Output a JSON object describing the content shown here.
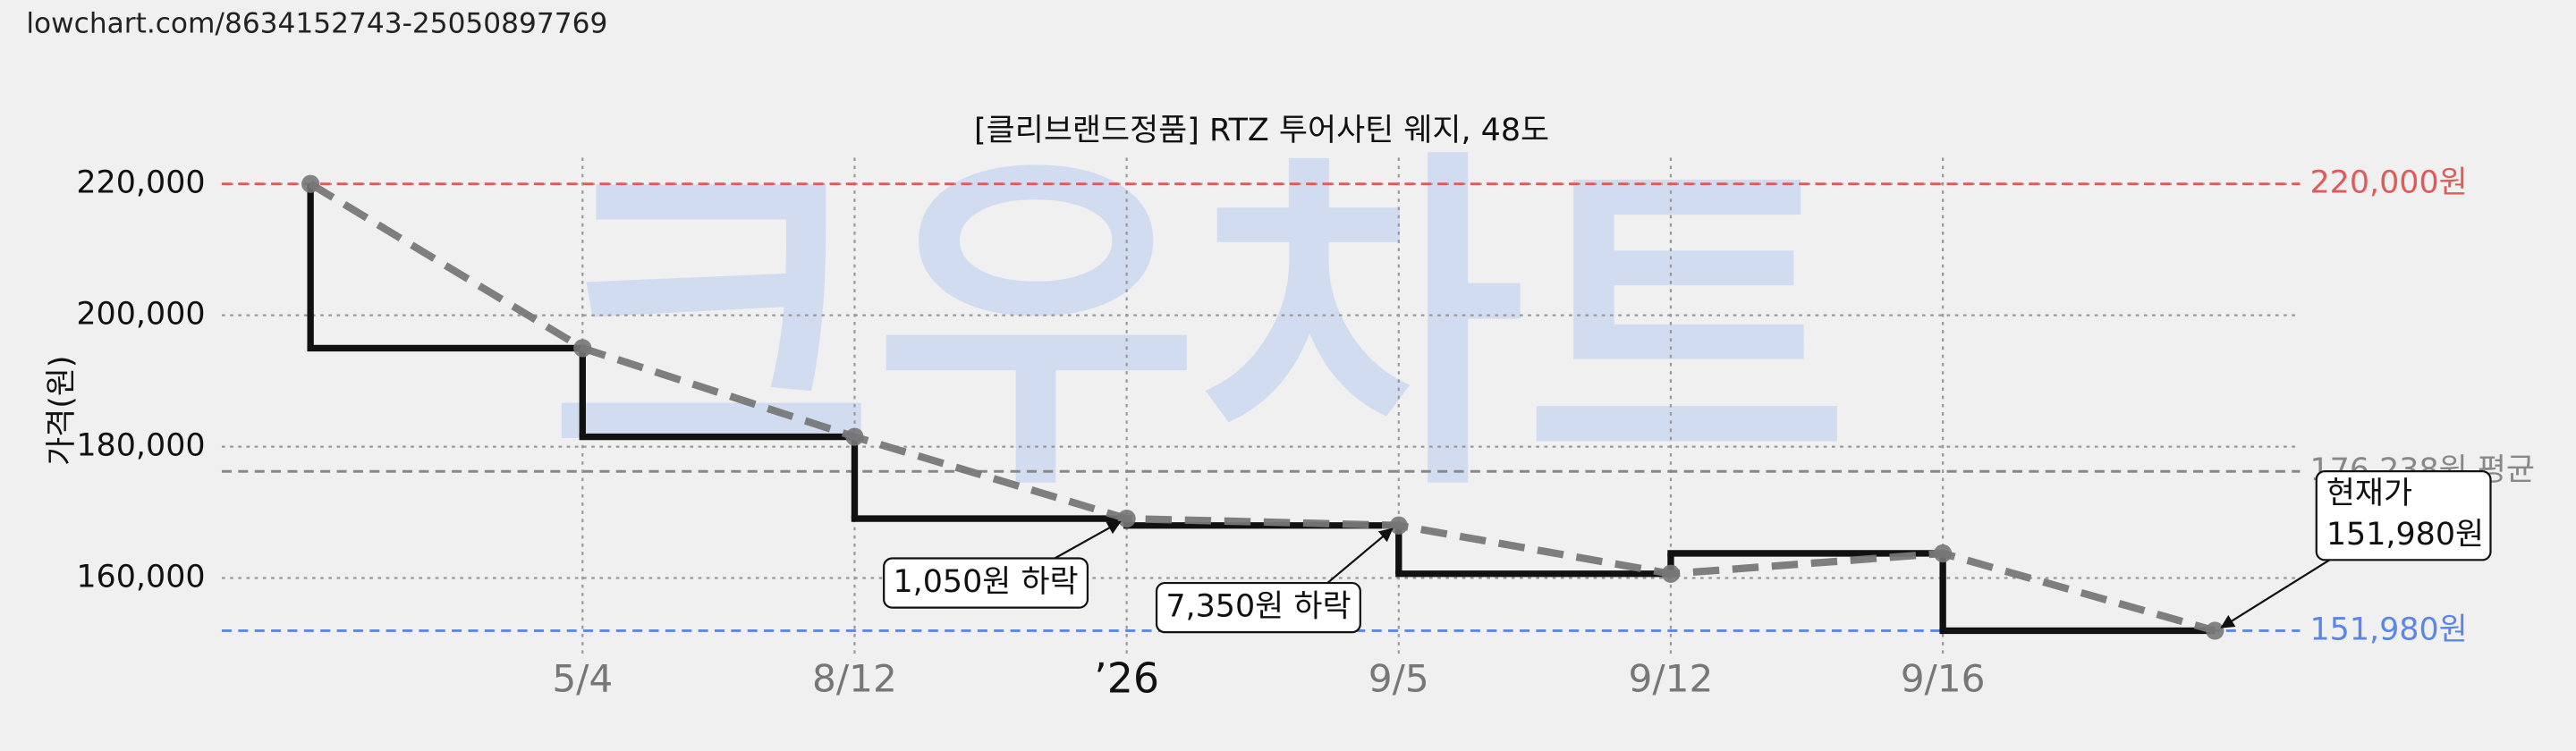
{
  "url": "lowchart.com/8634152743-25050897769",
  "watermark": "크우차트",
  "chart_data": {
    "type": "step",
    "title": "[클리브랜드정품] RTZ 투어사틴 웨지, 48도",
    "y_label": "가격(원)",
    "categories": [
      null,
      "5/4",
      "8/12",
      "’26",
      "9/5",
      "9/12",
      "9/16",
      null
    ],
    "series": [
      {
        "color": "#111111",
        "trend_color": "#777777",
        "values": [
          220000,
          195000,
          181500,
          169050,
          168000,
          160650,
          163750,
          151980
        ]
      }
    ],
    "ylim": [
      148000,
      224000
    ],
    "yticks": [
      {
        "value": 160000,
        "label": "160,000"
      },
      {
        "value": 180000,
        "label": "180,000"
      },
      {
        "value": 200000,
        "label": "200,000"
      },
      {
        "value": 220000,
        "label": "220,000"
      }
    ],
    "grid": true,
    "reference_lines": [
      {
        "value": 220000,
        "label": "220,000원",
        "color": "#e05a5a"
      },
      {
        "value": 176238,
        "label": "176,238원 평균",
        "color": "#888888"
      },
      {
        "value": 151980,
        "label": "151,980원",
        "color": "#5b86e5"
      }
    ],
    "annotations": [
      {
        "index": 3,
        "text": "1,050원 하락"
      },
      {
        "index": 4,
        "text": "7,350원 하락"
      },
      {
        "index": 7,
        "text": [
          "현재가",
          "151,980원"
        ]
      }
    ]
  }
}
